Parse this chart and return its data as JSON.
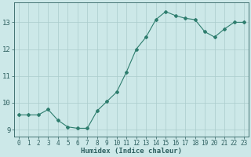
{
  "x": [
    0,
    1,
    2,
    3,
    4,
    5,
    6,
    7,
    8,
    9,
    10,
    11,
    12,
    13,
    14,
    15,
    16,
    17,
    18,
    19,
    20,
    21,
    22,
    23
  ],
  "y": [
    9.55,
    9.55,
    9.55,
    9.75,
    9.35,
    9.1,
    9.05,
    9.05,
    9.7,
    10.05,
    10.4,
    11.15,
    12.0,
    12.45,
    13.1,
    13.4,
    13.25,
    13.15,
    13.1,
    12.65,
    12.45,
    12.75,
    13.0,
    13.0
  ],
  "line_color": "#2e7d6e",
  "marker": "D",
  "marker_size": 2.0,
  "bg_color": "#cce8e8",
  "grid_color": "#aacccc",
  "xlabel": "Humidex (Indice chaleur)",
  "xlim": [
    -0.5,
    23.5
  ],
  "ylim": [
    8.75,
    13.75
  ],
  "yticks": [
    9,
    10,
    11,
    12,
    13
  ],
  "xticks": [
    0,
    1,
    2,
    3,
    4,
    5,
    6,
    7,
    8,
    9,
    10,
    11,
    12,
    13,
    14,
    15,
    16,
    17,
    18,
    19,
    20,
    21,
    22,
    23
  ],
  "tick_color": "#2e6060",
  "xlabel_fontsize": 6.5,
  "ytick_fontsize": 6.5,
  "xtick_fontsize": 5.5,
  "axis_color": "#2e6060",
  "line_width": 0.8
}
